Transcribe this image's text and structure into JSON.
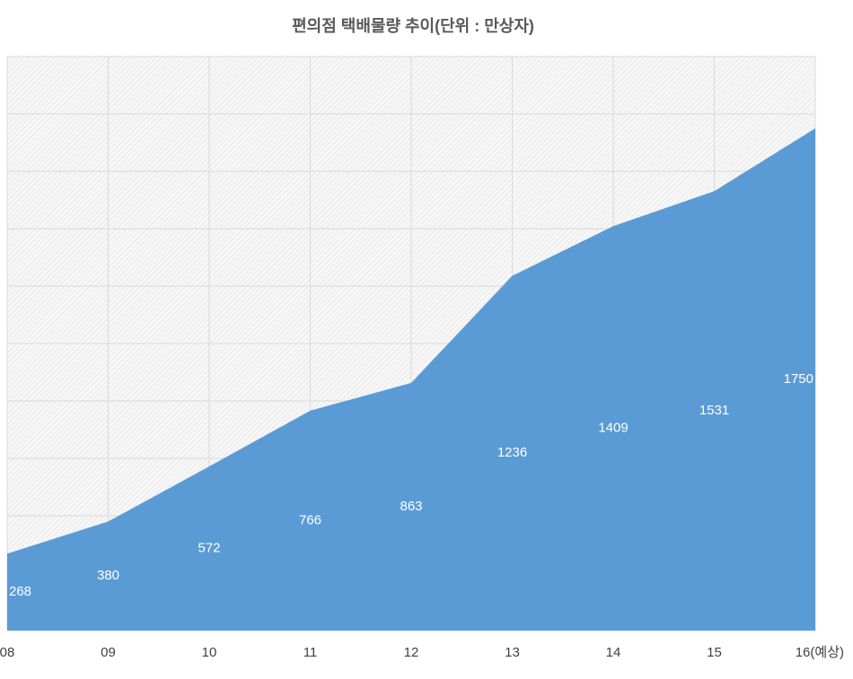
{
  "chart_data": {
    "type": "area",
    "title": "편의점 택배물량 추이(단위 : 만상자)",
    "categories": [
      "08",
      "09",
      "10",
      "11",
      "12",
      "13",
      "14",
      "15",
      "16(예상)"
    ],
    "values": [
      268,
      380,
      572,
      766,
      863,
      1236,
      1409,
      1531,
      1750
    ],
    "color": "#5b9bd5",
    "ylim": [
      0,
      2000
    ],
    "yticks": [
      0,
      200,
      400,
      600,
      800,
      1000,
      1200,
      1400,
      1600,
      1800,
      2000
    ],
    "grid": true
  }
}
